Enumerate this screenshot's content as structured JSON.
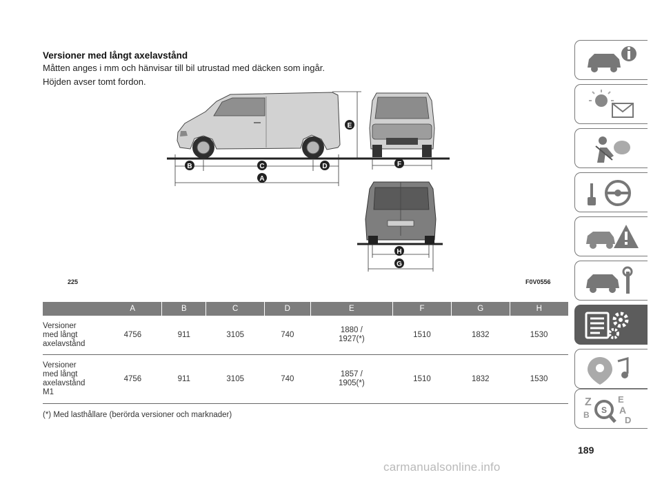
{
  "heading": {
    "title": "Versioner med långt axelavstånd",
    "line1": "Måtten anges i mm och hänvisar till bil utrustad med däcken som ingår.",
    "line2": "Höjden avser tomt fordon."
  },
  "figure": {
    "number": "225",
    "code": "F0V0556",
    "labels": [
      "A",
      "B",
      "C",
      "D",
      "E",
      "F",
      "G",
      "H"
    ]
  },
  "table": {
    "columns": [
      "A",
      "B",
      "C",
      "D",
      "E",
      "F",
      "G",
      "H"
    ],
    "rows": [
      {
        "label": "Versioner med långt axelavstånd",
        "label_lines": [
          "Versioner",
          "med långt",
          "axelavstånd"
        ],
        "A": "4756",
        "B": "911",
        "C": "3105",
        "D": "740",
        "E_line1": "1880 /",
        "E_line2": "1927(*)",
        "F": "1510",
        "G": "1832",
        "H": "1530"
      },
      {
        "label": "Versioner med långt axelavstånd M1",
        "label_lines": [
          "Versioner",
          "med långt",
          "axelavstånd",
          "M1"
        ],
        "A": "4756",
        "B": "911",
        "C": "3105",
        "D": "740",
        "E_line1": "1857 /",
        "E_line2": "1905(*)",
        "F": "1510",
        "G": "1832",
        "H": "1530"
      }
    ],
    "footnote": "(*) Med lasthållare (berörda versioner och marknader)"
  },
  "page_number": "189",
  "watermark": "carmanualsonline.info",
  "side_tabs": [
    {
      "icon": "car-info-icon",
      "active": false
    },
    {
      "icon": "warning-light-mail-icon",
      "active": false
    },
    {
      "icon": "airbag-seatbelt-icon",
      "active": false
    },
    {
      "icon": "key-steering-wheel-icon",
      "active": false
    },
    {
      "icon": "car-emergency-icon",
      "active": false
    },
    {
      "icon": "car-maintenance-icon",
      "active": false
    },
    {
      "icon": "technical-data-icon",
      "active": true
    },
    {
      "icon": "multimedia-icon",
      "active": false
    },
    {
      "icon": "alphabetical-index-icon",
      "active": false
    }
  ],
  "colors": {
    "table_header": "#7d7d7d",
    "active_tab": "#5c5c5c",
    "watermark": "#b9b9b9"
  }
}
